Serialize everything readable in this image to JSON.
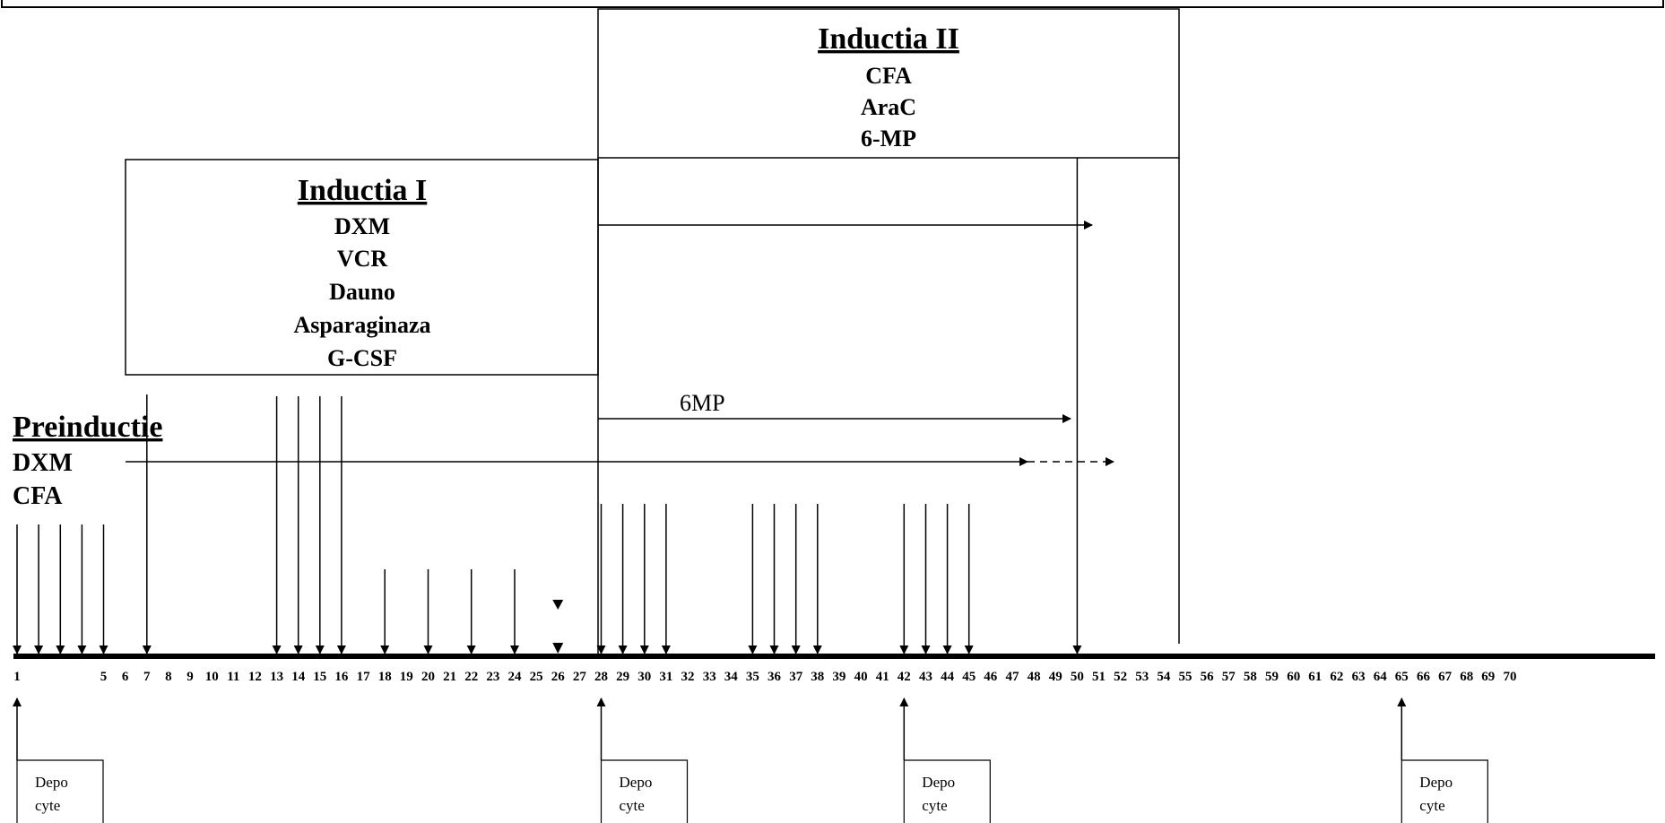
{
  "phases": {
    "preinductie": {
      "title": "Preinductie",
      "drugs": [
        "DXM",
        "CFA"
      ]
    },
    "inductia1": {
      "title": "Inductia I",
      "drugs": [
        "DXM",
        "VCR",
        "Dauno",
        "Asparaginaza",
        "G-CSF"
      ]
    },
    "inductia2": {
      "title": "Inductia II",
      "drugs": [
        "CFA",
        "AraC",
        "6-MP"
      ]
    }
  },
  "annotations": {
    "six_mp": "6MP"
  },
  "timeline": {
    "tick_labels": [
      "1",
      "5",
      "6",
      "7",
      "8",
      "9",
      "10",
      "11",
      "12",
      "13",
      "14",
      "15",
      "16",
      "17",
      "18",
      "19",
      "20",
      "21",
      "22",
      "23",
      "24",
      "25",
      "26",
      "27",
      "28",
      "29",
      "30",
      "31",
      "32",
      "33",
      "34",
      "35",
      "36",
      "37",
      "38",
      "39",
      "40",
      "41",
      "42",
      "43",
      "44",
      "45",
      "46",
      "47",
      "48",
      "49",
      "50",
      "51",
      "52",
      "53",
      "54",
      "55",
      "56",
      "57",
      "58",
      "59",
      "60",
      "61",
      "62",
      "63",
      "64",
      "65",
      "66",
      "67",
      "68",
      "69",
      "70"
    ]
  },
  "dose_days": {
    "preinductie": [
      1,
      2,
      3,
      4,
      5,
      7
    ],
    "inductia1_tall": [
      13,
      14,
      15,
      16
    ],
    "inductia1_short": [
      18,
      20,
      22,
      24
    ],
    "day26_double": [
      26
    ],
    "inductia2": [
      28,
      29,
      30,
      31,
      35,
      36,
      37,
      38,
      42,
      43,
      44,
      45
    ],
    "end": [
      50
    ]
  },
  "depocyte": {
    "label_line1": "Depo",
    "label_line2": "cyte",
    "days": [
      1,
      28,
      42,
      65
    ]
  }
}
